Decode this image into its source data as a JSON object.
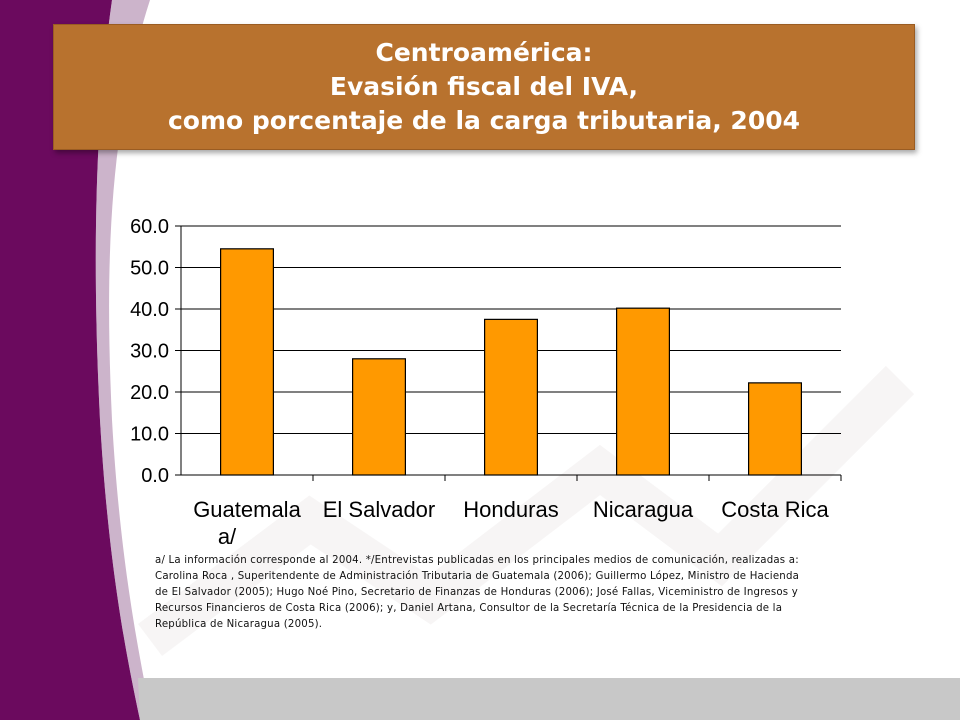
{
  "slide": {
    "title_lines": [
      "Centroamérica:",
      "Evasión fiscal del IVA,",
      "como porcentaje de la carga tributaria, 2004"
    ],
    "footnote_lines": [
      "a/ La información corresponde al 2004. */Entrevistas publicadas en los principales medios de comunicación, realizadas a:",
      "Carolina Roca , Superitendente de Administración Tributaria de Guatemala (2006); Guillermo López, Ministro de Hacienda",
      "de El Salvador (2005); Hugo Noé Pino, Secretario de Finanzas de Honduras (2006);  José Fallas, Viceministro de Ingresos y",
      "Recursos Financieros de Costa Rica (2006); y, Daniel Artana, Consultor de la Secretaría Técnica de la Presidencia de la",
      "República de Nicaragua (2005)."
    ],
    "colors": {
      "title_bg": "#b8722e",
      "bar_fill": "#ff9900",
      "bar_stroke": "#000000",
      "left_band": "#6b0a5e"
    }
  },
  "chart_data": {
    "type": "bar",
    "categories": [
      "Guatemala a/",
      "El Salvador",
      "Honduras",
      "Nicaragua",
      "Costa Rica"
    ],
    "values": [
      54.5,
      28.0,
      37.5,
      40.2,
      22.2
    ],
    "ylim": [
      0,
      60
    ],
    "yticks": [
      "0.0",
      "10.0",
      "20.0",
      "30.0",
      "40.0",
      "50.0",
      "60.0"
    ],
    "grid": true,
    "legend": "none"
  }
}
